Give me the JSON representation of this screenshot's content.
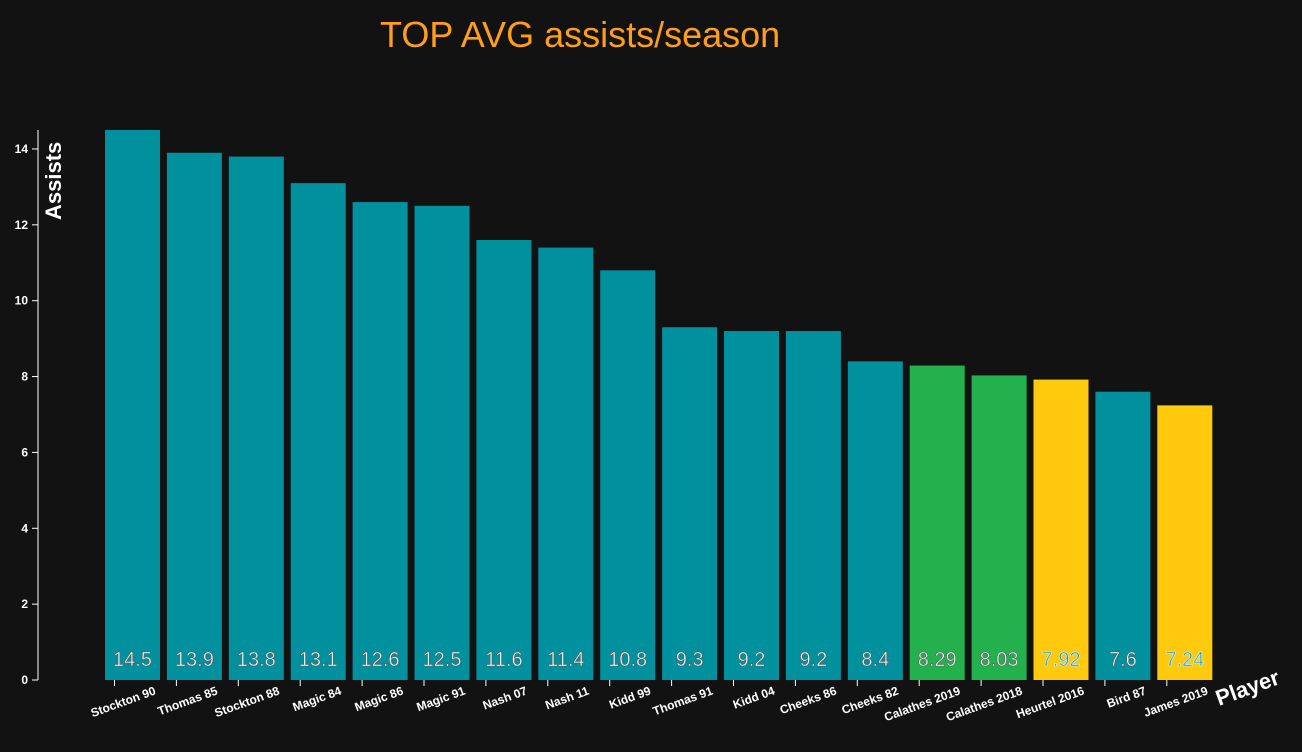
{
  "chart_data": {
    "type": "bar",
    "title": "TOP AVG assists/season",
    "xlabel": "Player",
    "ylabel": "Assists",
    "ylim": [
      0,
      14.5
    ],
    "yticks": [
      0,
      2,
      4,
      6,
      8,
      10,
      12,
      14
    ],
    "grid": false,
    "categories": [
      "Stockton 90",
      "Thomas 85",
      "Stockton 88",
      "Magic 84",
      "Magic 86",
      "Magic 91",
      "Nash 07",
      "Nash 11",
      "Kidd 99",
      "Thomas 91",
      "Kidd 04",
      "Cheeks 86",
      "Cheeks 82",
      "Calathes 2019",
      "Calathes 2018",
      "Heurtel 2016",
      "Bird 87",
      "James 2019"
    ],
    "values": [
      14.5,
      13.9,
      13.8,
      13.1,
      12.6,
      12.5,
      11.6,
      11.4,
      10.8,
      9.3,
      9.2,
      9.2,
      8.4,
      8.29,
      8.03,
      7.92,
      7.6,
      7.24
    ],
    "value_labels": [
      "14.5",
      "13.9",
      "13.8",
      "13.1",
      "12.6",
      "12.5",
      "11.6",
      "11.4",
      "10.8",
      "9.3",
      "9.2",
      "9.2",
      "8.4",
      "8.29",
      "8.03",
      "7.92",
      "7.6",
      "7.24"
    ],
    "bar_colors": [
      "#00909e",
      "#00909e",
      "#00909e",
      "#00909e",
      "#00909e",
      "#00909e",
      "#00909e",
      "#00909e",
      "#00909e",
      "#00909e",
      "#00909e",
      "#00909e",
      "#00909e",
      "#22b14c",
      "#22b14c",
      "#ffc90e",
      "#00909e",
      "#ffc90e"
    ],
    "label_fill": [
      "#ffffff",
      "#ffffff",
      "#ffffff",
      "#ffffff",
      "#ffffff",
      "#ffffff",
      "#ffffff",
      "#ffffff",
      "#ffffff",
      "#ffffff",
      "#ffffff",
      "#ffffff",
      "#ffffff",
      "#ffffff",
      "#ffffff",
      "#00909e",
      "#ffffff",
      "#00909e"
    ],
    "colors": {
      "background": "#121212",
      "title": "#ff9e1b",
      "axis": "#ffffff"
    }
  }
}
